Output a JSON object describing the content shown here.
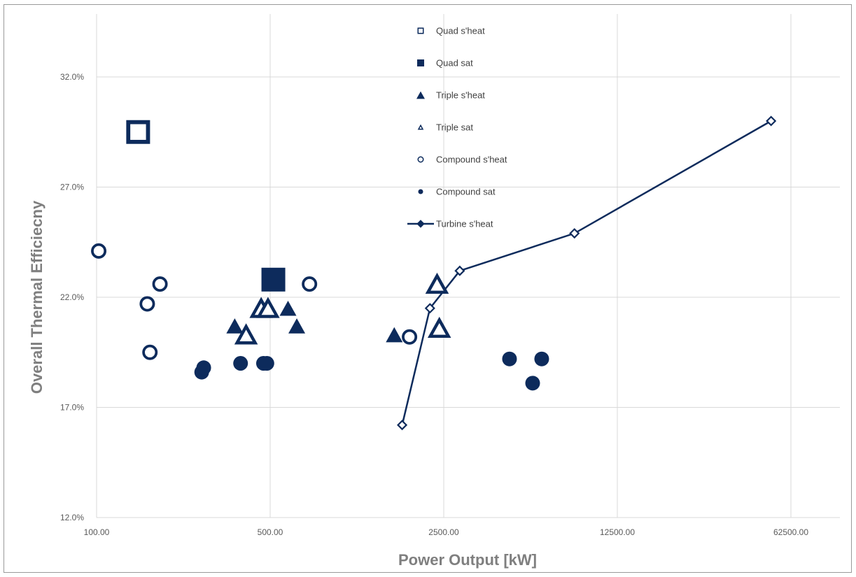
{
  "chart_data": {
    "type": "scatter",
    "title": "",
    "xlabel": "Power Output   [kW]",
    "ylabel": "Overall Thermal Efficiecny",
    "x_scale": "log",
    "xlim": [
      100,
      100000
    ],
    "ylim": [
      12.0,
      35.0
    ],
    "x_ticks": [
      100,
      500,
      2500,
      12500,
      62500
    ],
    "x_tick_labels": [
      "100.00",
      "500.00",
      "2500.00",
      "12500.00",
      "62500.00"
    ],
    "y_ticks": [
      12,
      17,
      22,
      27,
      32
    ],
    "y_tick_labels": [
      "12.0%",
      "17.0%",
      "22.0%",
      "27.0%",
      "32.0%"
    ],
    "grid": true,
    "legend_position": "top-center",
    "color": "#0d2b5c",
    "series": [
      {
        "name": "Quad s'heat",
        "marker": "square-open",
        "points": [
          [
            147,
            29.5
          ]
        ]
      },
      {
        "name": "Quad sat",
        "marker": "square-filled",
        "points": [
          [
            515,
            22.8
          ]
        ]
      },
      {
        "name": "Triple s'heat",
        "marker": "triangle-filled",
        "points": [
          [
            360,
            20.7
          ],
          [
            590,
            21.5
          ],
          [
            640,
            20.7
          ],
          [
            1580,
            20.3
          ]
        ]
      },
      {
        "name": "Triple sat",
        "marker": "triangle-open",
        "points": [
          [
            400,
            20.3
          ],
          [
            460,
            21.5
          ],
          [
            490,
            21.5
          ],
          [
            2350,
            22.6
          ],
          [
            2400,
            20.6
          ]
        ]
      },
      {
        "name": "Compound s'heat",
        "marker": "circle-open",
        "points": [
          [
            102,
            24.1
          ],
          [
            160,
            21.7
          ],
          [
            164,
            19.5
          ],
          [
            180,
            22.6
          ],
          [
            720,
            22.6
          ],
          [
            1820,
            20.2
          ]
        ]
      },
      {
        "name": "Compound sat",
        "marker": "circle-filled",
        "points": [
          [
            265,
            18.6
          ],
          [
            270,
            18.8
          ],
          [
            380,
            19.0
          ],
          [
            470,
            19.0
          ],
          [
            485,
            19.0
          ],
          [
            4600,
            19.2
          ],
          [
            5700,
            18.1
          ],
          [
            6200,
            19.2
          ]
        ]
      },
      {
        "name": "Turbine s'heat",
        "marker": "diamond-open",
        "line": true,
        "points": [
          [
            1700,
            16.2
          ],
          [
            2200,
            21.5
          ],
          [
            2900,
            23.2
          ],
          [
            8400,
            24.9
          ],
          [
            52000,
            30.0
          ]
        ]
      }
    ]
  }
}
